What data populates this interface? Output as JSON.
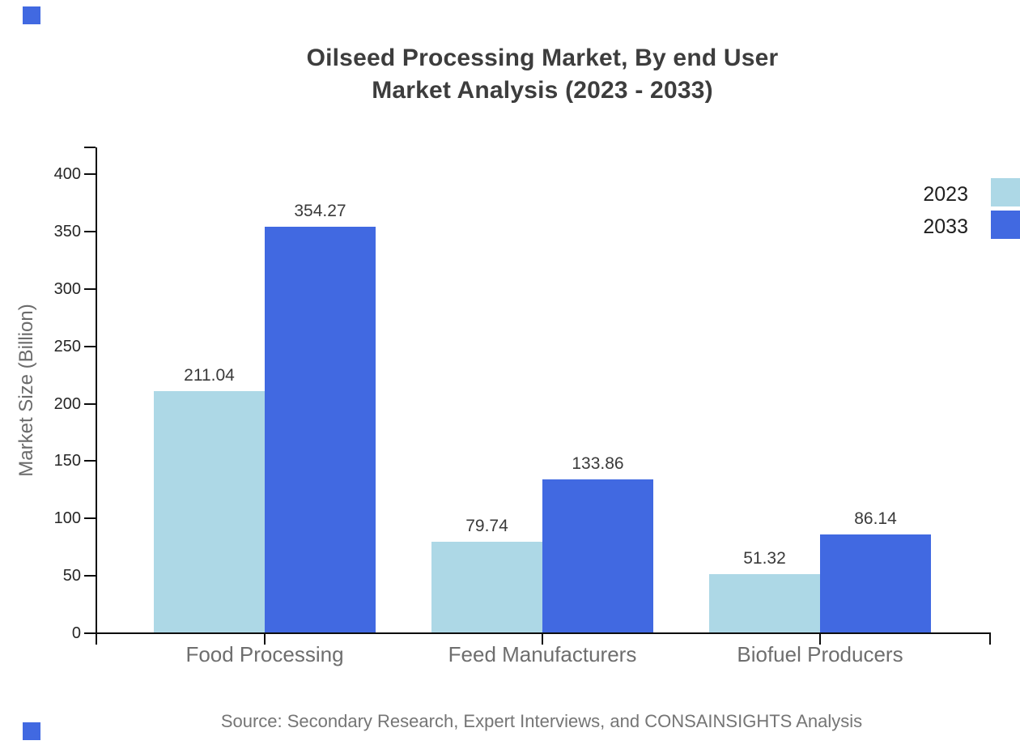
{
  "title": {
    "line1": "Oilseed Processing Market, By end User",
    "line2": "Market Analysis (2023 - 2033)"
  },
  "source_text": "Source: Secondary Research, Expert Interviews, and CONSAINSIGHTS Analysis",
  "brand": {
    "accent_color": "#4169e1"
  },
  "chart_data": {
    "type": "bar",
    "title": "Oilseed Processing Market, By end User Market Analysis (2023 - 2033)",
    "categories": [
      "Food Processing",
      "Feed Manufacturers",
      "Biofuel Producers"
    ],
    "series": [
      {
        "name": "2023",
        "color": "#add8e6",
        "values": [
          211.04,
          79.74,
          51.32
        ]
      },
      {
        "name": "2033",
        "color": "#4169e1",
        "values": [
          354.27,
          133.86,
          86.14
        ]
      }
    ],
    "value_labels": true,
    "xlabel": "",
    "ylabel": "Market Size (Billion)",
    "ylim": [
      0,
      400
    ],
    "yticks": [
      0,
      50,
      100,
      150,
      200,
      250,
      300,
      350,
      400
    ],
    "grid": false,
    "legend_position": "top-right",
    "axis_color": "#0d0d0d",
    "background": "#ffffff"
  }
}
